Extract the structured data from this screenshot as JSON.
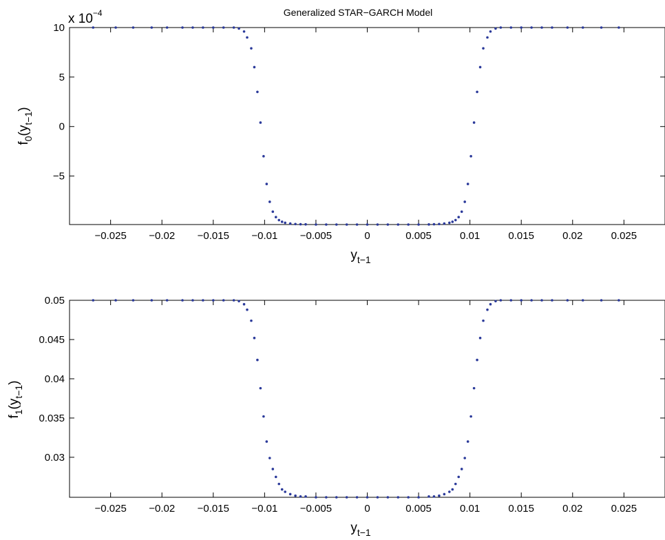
{
  "figure": {
    "title": "Generalized STAR−GARCH Model",
    "marker_color": "#2b3a9a",
    "axis_color": "#000000"
  },
  "chart_data": [
    {
      "type": "scatter",
      "title": "Generalized STAR−GARCH Model",
      "xlabel": {
        "base": "y",
        "sub": "t−1"
      },
      "ylabel": {
        "base": "f",
        "sub0": "0",
        "mid": "(y",
        "sub1": "t−1",
        "end": ")"
      },
      "exponent_label": {
        "base": "x 10",
        "sup": "−4"
      },
      "xlim": [
        -0.029,
        0.029
      ],
      "ylim": [
        -9.9,
        10
      ],
      "xticks": [
        -0.025,
        -0.02,
        -0.015,
        -0.01,
        -0.005,
        0,
        0.005,
        0.01,
        0.015,
        0.02,
        0.025
      ],
      "xtick_labels": [
        "−0.025",
        "−0.02",
        "−0.015",
        "−0.01",
        "−0.005",
        "0",
        "0.005",
        "0.01",
        "0.015",
        "0.02",
        "0.025"
      ],
      "yticks": [
        -5,
        0,
        5,
        10
      ],
      "ytick_labels": [
        "−5",
        "0",
        "5",
        "10"
      ],
      "grid": false,
      "series": [
        {
          "x": [
            -0.0267,
            -0.0245,
            -0.0228,
            -0.021,
            -0.0195,
            -0.018,
            -0.017,
            -0.016,
            -0.015,
            -0.014,
            -0.013,
            -0.0125,
            -0.012,
            -0.0117,
            -0.0113,
            -0.011,
            -0.0107,
            -0.0104,
            -0.0101,
            -0.0098,
            -0.0095,
            -0.0092,
            -0.0089,
            -0.0086,
            -0.0083,
            -0.008,
            -0.0075,
            -0.007,
            -0.0065,
            -0.006,
            -0.005,
            -0.004,
            -0.003,
            -0.002,
            -0.001,
            0,
            0.001,
            0.002,
            0.003,
            0.004,
            0.005,
            0.006,
            0.0065,
            0.007,
            0.0075,
            0.008,
            0.0083,
            0.0086,
            0.0089,
            0.0092,
            0.0095,
            0.0098,
            0.0101,
            0.0104,
            0.0107,
            0.011,
            0.0113,
            0.0117,
            0.012,
            0.0125,
            0.013,
            0.014,
            0.015,
            0.016,
            0.017,
            0.018,
            0.0195,
            0.021,
            0.0228,
            0.0245
          ],
          "y": [
            10,
            10,
            10,
            10,
            10,
            10,
            10,
            10,
            10,
            10,
            10,
            9.9,
            9.6,
            9.0,
            7.9,
            6.0,
            3.5,
            0.4,
            -3.0,
            -5.8,
            -7.6,
            -8.6,
            -9.15,
            -9.45,
            -9.62,
            -9.72,
            -9.8,
            -9.85,
            -9.87,
            -9.88,
            -9.9,
            -9.9,
            -9.9,
            -9.9,
            -9.9,
            -9.9,
            -9.9,
            -9.9,
            -9.9,
            -9.9,
            -9.9,
            -9.89,
            -9.87,
            -9.85,
            -9.8,
            -9.72,
            -9.62,
            -9.45,
            -9.15,
            -8.6,
            -7.6,
            -5.8,
            -3.0,
            0.4,
            3.5,
            6.0,
            7.9,
            9.0,
            9.6,
            9.9,
            10,
            10,
            10,
            10,
            10,
            10,
            10,
            10,
            10,
            10
          ]
        }
      ]
    },
    {
      "type": "scatter",
      "title": "",
      "xlabel": {
        "base": "y",
        "sub": "t−1"
      },
      "ylabel": {
        "base": "f",
        "sub0": "1",
        "mid": "(y",
        "sub1": "t−1",
        "end": ")"
      },
      "xlim": [
        -0.029,
        0.029
      ],
      "ylim": [
        0.0249,
        0.05
      ],
      "xticks": [
        -0.025,
        -0.02,
        -0.015,
        -0.01,
        -0.005,
        0,
        0.005,
        0.01,
        0.015,
        0.02,
        0.025
      ],
      "xtick_labels": [
        "−0.025",
        "−0.02",
        "−0.015",
        "−0.01",
        "−0.005",
        "0",
        "0.005",
        "0.01",
        "0.015",
        "0.02",
        "0.025"
      ],
      "yticks": [
        0.03,
        0.035,
        0.04,
        0.045,
        0.05
      ],
      "ytick_labels": [
        "0.03",
        "0.035",
        "0.04",
        "0.045",
        "0.05"
      ],
      "grid": false,
      "series": [
        {
          "x": [
            -0.0267,
            -0.0245,
            -0.0228,
            -0.021,
            -0.0195,
            -0.018,
            -0.017,
            -0.016,
            -0.015,
            -0.014,
            -0.013,
            -0.0125,
            -0.012,
            -0.0117,
            -0.0113,
            -0.011,
            -0.0107,
            -0.0104,
            -0.0101,
            -0.0098,
            -0.0095,
            -0.0092,
            -0.0089,
            -0.0086,
            -0.0083,
            -0.008,
            -0.0075,
            -0.007,
            -0.0065,
            -0.006,
            -0.005,
            -0.004,
            -0.003,
            -0.002,
            -0.001,
            0,
            0.001,
            0.002,
            0.003,
            0.004,
            0.005,
            0.006,
            0.0065,
            0.007,
            0.0075,
            0.008,
            0.0083,
            0.0086,
            0.0089,
            0.0092,
            0.0095,
            0.0098,
            0.0101,
            0.0104,
            0.0107,
            0.011,
            0.0113,
            0.0117,
            0.012,
            0.0125,
            0.013,
            0.014,
            0.015,
            0.016,
            0.017,
            0.018,
            0.0195,
            0.021,
            0.0228,
            0.0245
          ],
          "y": [
            0.05,
            0.05,
            0.05,
            0.05,
            0.05,
            0.05,
            0.05,
            0.05,
            0.05,
            0.05,
            0.05,
            0.0499,
            0.0495,
            0.0488,
            0.0474,
            0.0452,
            0.0424,
            0.0388,
            0.0352,
            0.032,
            0.0299,
            0.0285,
            0.0275,
            0.0266,
            0.0259,
            0.0256,
            0.0253,
            0.0251,
            0.025,
            0.025,
            0.0249,
            0.0249,
            0.0249,
            0.0249,
            0.0249,
            0.0249,
            0.0249,
            0.0249,
            0.0249,
            0.0249,
            0.0249,
            0.025,
            0.025,
            0.0251,
            0.0253,
            0.0256,
            0.0259,
            0.0266,
            0.0275,
            0.0285,
            0.0299,
            0.032,
            0.0352,
            0.0388,
            0.0424,
            0.0452,
            0.0474,
            0.0488,
            0.0495,
            0.0499,
            0.05,
            0.05,
            0.05,
            0.05,
            0.05,
            0.05,
            0.05,
            0.05,
            0.05,
            0.05
          ]
        }
      ]
    }
  ]
}
